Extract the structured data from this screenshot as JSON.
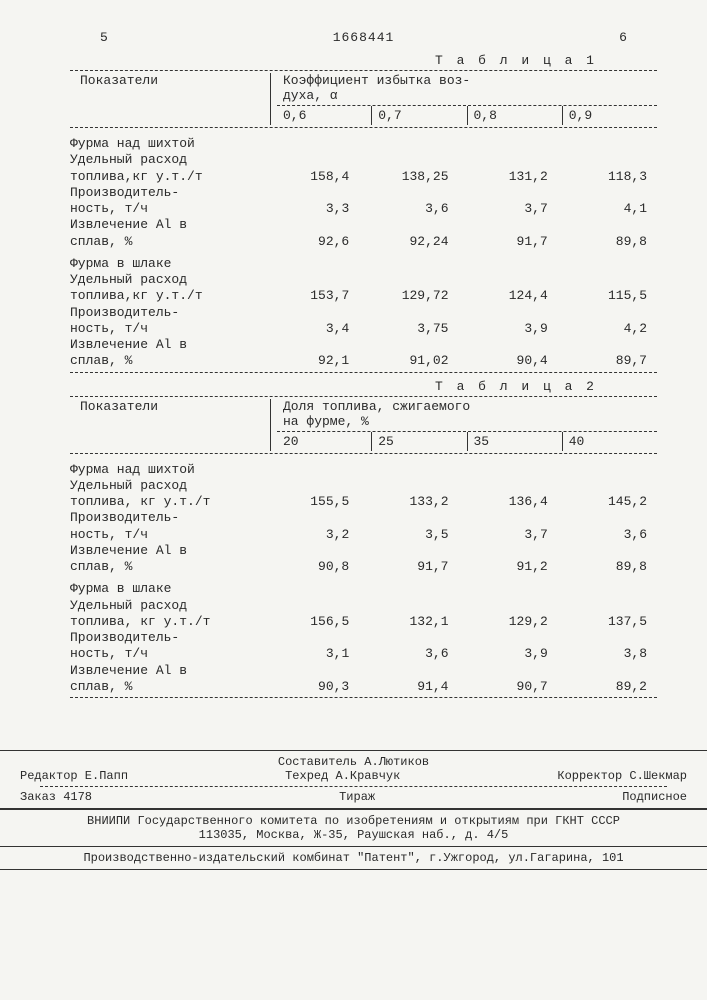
{
  "header": {
    "page_left": "5",
    "doc_number": "1668441",
    "page_right": "6"
  },
  "table1": {
    "title": "Т а б л и ц а  1",
    "col_header_left": "Показатели",
    "col_header_right_line1": "Коэффициент избытка воз-",
    "col_header_right_line2": "духа, α",
    "subcols": [
      "0,6",
      "0,7",
      "0,8",
      "0,9"
    ],
    "sect1_title": "Фурма над шихтой",
    "sect2_title": "Фурма в шлаке",
    "row1_label1": "Удельный расход",
    "row1_label2": "топлива,кг у.т./т",
    "row2_label1": "Производитель-",
    "row2_label2": "ность, т/ч",
    "row3_label1": "Извлечение Al в",
    "row3_label2": "сплав, %",
    "s1r1": [
      "158,4",
      "138,25",
      "131,2",
      "118,3"
    ],
    "s1r2": [
      "3,3",
      "3,6",
      "3,7",
      "4,1"
    ],
    "s1r3": [
      "92,6",
      "92,24",
      "91,7",
      "89,8"
    ],
    "s2r1": [
      "153,7",
      "129,72",
      "124,4",
      "115,5"
    ],
    "s2r2": [
      "3,4",
      "3,75",
      "3,9",
      "4,2"
    ],
    "s2r3": [
      "92,1",
      "91,02",
      "90,4",
      "89,7"
    ]
  },
  "table2": {
    "title": "Т а б л и ц а  2",
    "col_header_left": "Показатели",
    "col_header_right_line1": "Доля топлива, сжигаемого",
    "col_header_right_line2": "на фурме, %",
    "subcols": [
      "20",
      "25",
      "35",
      "40"
    ],
    "sect1_title": "Фурма над шихтой",
    "sect2_title": "Фурма в шлаке",
    "row1_label1": "Удельный расход",
    "row1_label2": "топлива, кг у.т./т",
    "row2_label1": "Производитель-",
    "row2_label2": "ность, т/ч",
    "row3_label1": "Извлечение Al в",
    "row3_label2": "сплав, %",
    "s1r1": [
      "155,5",
      "133,2",
      "136,4",
      "145,2"
    ],
    "s1r2": [
      "3,2",
      "3,5",
      "3,7",
      "3,6"
    ],
    "s1r3": [
      "90,8",
      "91,7",
      "91,2",
      "89,8"
    ],
    "s2r1": [
      "156,5",
      "132,1",
      "129,2",
      "137,5"
    ],
    "s2r2": [
      "3,1",
      "3,6",
      "3,9",
      "3,8"
    ],
    "s2r3": [
      "90,3",
      "91,4",
      "90,7",
      "89,2"
    ]
  },
  "footer": {
    "compiler": "Составитель А.Лютиков",
    "editor": "Редактор Е.Папп",
    "tech": "Техред А.Кравчук",
    "corrector": "Корректор С.Шекмар",
    "order": "Заказ 4178",
    "tirazh": "Тираж",
    "podpis": "Подписное",
    "org1": "ВНИИПИ Государственного комитета по изобретениям и открытиям при ГКНТ СССР",
    "addr1": "113035, Москва, Ж-35, Раушская наб., д. 4/5",
    "org2": "Производственно-издательский комбинат \"Патент\", г.Ужгород, ул.Гагарина, 101"
  }
}
